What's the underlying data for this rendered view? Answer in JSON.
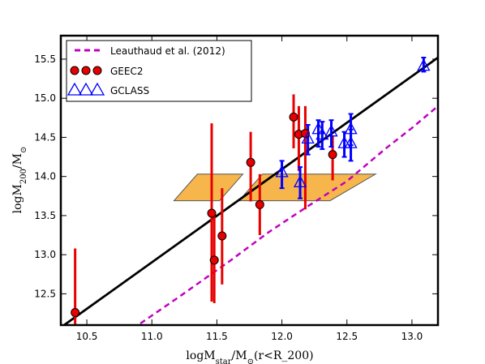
{
  "chart_data": {
    "type": "scatter",
    "xlabel": "logM_star/M_⊙(r<R_200)",
    "ylabel": "logM_200/M_⊙",
    "xlim": [
      10.3,
      13.2
    ],
    "ylim": [
      12.1,
      15.8
    ],
    "x_ticks": [
      10.5,
      11.0,
      11.5,
      12.0,
      12.5,
      13.0
    ],
    "y_ticks": [
      12.5,
      13.0,
      13.5,
      14.0,
      14.5,
      15.0,
      15.5
    ],
    "x_tick_labels": [
      "10.5",
      "11.0",
      "11.5",
      "12.0",
      "12.5",
      "13.0"
    ],
    "y_tick_labels": [
      "12.5",
      "13.0",
      "13.5",
      "14.0",
      "14.5",
      "15.0",
      "15.5"
    ],
    "legend_position": "top-left",
    "legend": [
      {
        "label": "Leauthaud et al. (2012)",
        "marker": "dashed-line",
        "color": "#c000c0"
      },
      {
        "label": "GEEC2",
        "marker": "red-circle",
        "color": "#e80000"
      },
      {
        "label": "GCLASS",
        "marker": "blue-triangle",
        "color": "#0000ff"
      }
    ],
    "fit_line": {
      "color": "#000000",
      "points": [
        [
          10.3,
          12.07
        ],
        [
          13.2,
          15.52
        ]
      ]
    },
    "leauthaud_curve": {
      "label": "Leauthaud et al. (2012)",
      "color": "#c000c0",
      "points": [
        [
          10.85,
          12.05
        ],
        [
          11.2,
          12.45
        ],
        [
          11.6,
          12.92
        ],
        [
          11.9,
          13.29
        ],
        [
          12.2,
          13.62
        ],
        [
          12.5,
          13.94
        ],
        [
          12.8,
          14.36
        ],
        [
          13.0,
          14.62
        ],
        [
          13.2,
          14.9
        ]
      ]
    },
    "shaded_regions": [
      {
        "color": "#f7b64c",
        "vertices": [
          [
            11.17,
            13.69
          ],
          [
            11.35,
            14.03
          ],
          [
            11.7,
            14.03
          ],
          [
            11.52,
            13.69
          ]
        ]
      },
      {
        "color": "#f7b64c",
        "vertices": [
          [
            11.67,
            13.69
          ],
          [
            11.85,
            14.03
          ],
          [
            12.72,
            14.03
          ],
          [
            12.37,
            13.69
          ]
        ]
      }
    ],
    "series": [
      {
        "name": "GEEC2",
        "color": "#e80000",
        "points": [
          {
            "x": 10.41,
            "y": 12.26,
            "ylo": 12.1,
            "yhi": 13.08
          },
          {
            "x": 11.46,
            "y": 13.53,
            "ylo": 12.4,
            "yhi": 14.68
          },
          {
            "x": 11.48,
            "y": 12.93,
            "ylo": 12.38,
            "yhi": 13.53
          },
          {
            "x": 11.54,
            "y": 13.24,
            "ylo": 12.62,
            "yhi": 13.85
          },
          {
            "x": 11.76,
            "y": 14.18,
            "ylo": 13.68,
            "yhi": 14.57
          },
          {
            "x": 11.83,
            "y": 13.64,
            "ylo": 13.25,
            "yhi": 14.03
          },
          {
            "x": 12.09,
            "y": 14.76,
            "ylo": 14.36,
            "yhi": 15.05
          },
          {
            "x": 12.13,
            "y": 14.54,
            "ylo": 14.07,
            "yhi": 14.9
          },
          {
            "x": 12.18,
            "y": 14.55,
            "ylo": 13.58,
            "yhi": 14.9
          },
          {
            "x": 12.39,
            "y": 14.28,
            "ylo": 13.95,
            "yhi": 14.52
          }
        ]
      },
      {
        "name": "GCLASS",
        "color": "#0000ff",
        "points": [
          {
            "x": 12.0,
            "y": 14.05,
            "ylo": 13.85,
            "yhi": 14.2
          },
          {
            "x": 12.14,
            "y": 13.92,
            "ylo": 13.72,
            "yhi": 14.12
          },
          {
            "x": 12.2,
            "y": 14.48,
            "ylo": 14.28,
            "yhi": 14.66
          },
          {
            "x": 12.28,
            "y": 14.6,
            "ylo": 14.38,
            "yhi": 14.72
          },
          {
            "x": 12.31,
            "y": 14.53,
            "ylo": 14.35,
            "yhi": 14.7
          },
          {
            "x": 12.38,
            "y": 14.57,
            "ylo": 14.38,
            "yhi": 14.72
          },
          {
            "x": 12.48,
            "y": 14.42,
            "ylo": 14.25,
            "yhi": 14.57
          },
          {
            "x": 12.53,
            "y": 14.6,
            "ylo": 14.4,
            "yhi": 14.8
          },
          {
            "x": 12.53,
            "y": 14.42,
            "ylo": 14.2,
            "yhi": 14.6
          },
          {
            "x": 13.09,
            "y": 15.41,
            "ylo": 15.34,
            "yhi": 15.52
          }
        ]
      }
    ]
  }
}
